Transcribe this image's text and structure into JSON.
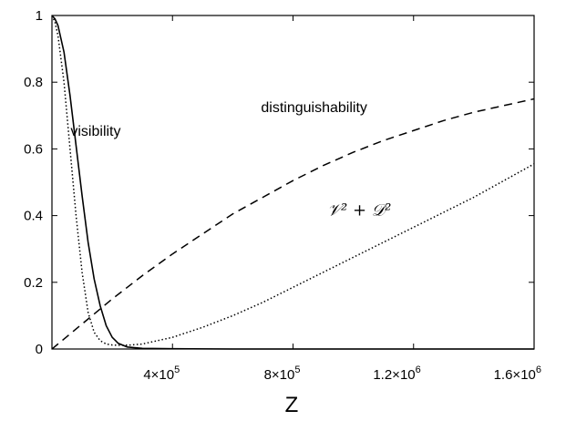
{
  "chart_data": {
    "type": "line",
    "title": "",
    "xlabel": "Z",
    "ylabel": "",
    "xlim": [
      0,
      1600000
    ],
    "ylim": [
      0,
      1
    ],
    "grid": false,
    "legend": "none",
    "x_ticks": [
      {
        "value": 400000,
        "label": "4×10",
        "exp": "5"
      },
      {
        "value": 800000,
        "label": "8×10",
        "exp": "5"
      },
      {
        "value": 1200000,
        "label": "1.2×10",
        "exp": "6"
      },
      {
        "value": 1600000,
        "label": "1.6×10",
        "exp": "6"
      }
    ],
    "y_ticks": [
      {
        "value": 0,
        "label": "0"
      },
      {
        "value": 0.2,
        "label": "0.2"
      },
      {
        "value": 0.4,
        "label": "0.4"
      },
      {
        "value": 0.6,
        "label": "0.6"
      },
      {
        "value": 0.8,
        "label": "0.8"
      },
      {
        "value": 1,
        "label": "1"
      }
    ],
    "series": [
      {
        "name": "visibility",
        "style": "solid",
        "color": "#000000",
        "x": [
          0,
          10000,
          20000,
          40000,
          60000,
          80000,
          100000,
          120000,
          140000,
          160000,
          180000,
          200000,
          220000,
          250000,
          300000,
          400000,
          600000,
          900000,
          1200000,
          1600000
        ],
        "y": [
          1,
          0.99,
          0.97,
          0.89,
          0.76,
          0.61,
          0.46,
          0.32,
          0.21,
          0.13,
          0.07,
          0.035,
          0.017,
          0.006,
          0.002,
          0.001,
          0.0,
          0.0,
          0.0,
          0.0
        ]
      },
      {
        "name": "distinguishability",
        "style": "dashed",
        "color": "#000000",
        "x": [
          0,
          100000,
          200000,
          300000,
          400000,
          500000,
          600000,
          700000,
          800000,
          900000,
          1000000,
          1100000,
          1200000,
          1300000,
          1400000,
          1500000,
          1600000
        ],
        "y": [
          0,
          0.075,
          0.15,
          0.22,
          0.285,
          0.345,
          0.405,
          0.455,
          0.505,
          0.55,
          0.59,
          0.625,
          0.655,
          0.685,
          0.71,
          0.73,
          0.75
        ]
      },
      {
        "name": "V² + D²",
        "style": "dotted",
        "color": "#000000",
        "x": [
          0,
          10000,
          20000,
          40000,
          60000,
          80000,
          100000,
          120000,
          140000,
          160000,
          180000,
          200000,
          230000,
          260000,
          300000,
          400000,
          500000,
          600000,
          700000,
          800000,
          900000,
          1000000,
          1100000,
          1200000,
          1300000,
          1400000,
          1500000,
          1600000
        ],
        "y": [
          1,
          0.98,
          0.94,
          0.8,
          0.6,
          0.4,
          0.23,
          0.11,
          0.05,
          0.025,
          0.015,
          0.012,
          0.011,
          0.012,
          0.015,
          0.035,
          0.065,
          0.1,
          0.14,
          0.185,
          0.23,
          0.275,
          0.32,
          0.365,
          0.41,
          0.455,
          0.505,
          0.555
        ]
      }
    ],
    "annotations": [
      {
        "text": "visibility",
        "x": 145000,
        "y": 0.64
      },
      {
        "text": "distinguishability",
        "x": 870000,
        "y": 0.71
      },
      {
        "text": "𝒱² + 𝒟²",
        "x": 1020000,
        "y": 0.4
      }
    ]
  }
}
